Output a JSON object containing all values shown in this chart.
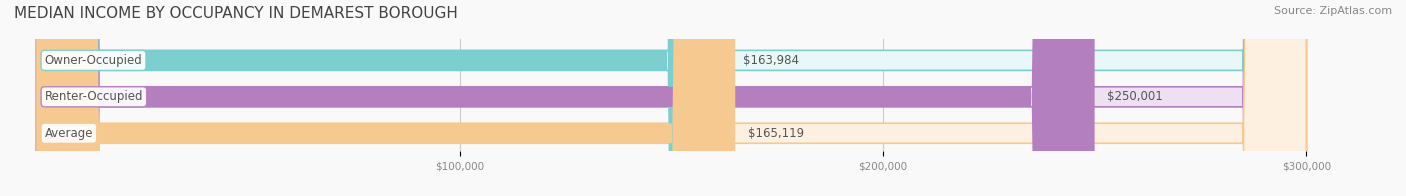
{
  "title": "MEDIAN INCOME BY OCCUPANCY IN DEMAREST BOROUGH",
  "source": "Source: ZipAtlas.com",
  "categories": [
    "Owner-Occupied",
    "Renter-Occupied",
    "Average"
  ],
  "values": [
    163984,
    250001,
    165119
  ],
  "bar_colors": [
    "#7dcfcf",
    "#b47fbe",
    "#f5c990"
  ],
  "bar_bg_colors": [
    "#e8f7f7",
    "#ede0f2",
    "#fdf0e0"
  ],
  "label_colors": [
    "#7dcfcf",
    "#b47fbe",
    "#f5c990"
  ],
  "value_labels": [
    "$163,984",
    "$250,001",
    "$165,119"
  ],
  "xlim": [
    0,
    300000
  ],
  "xticks": [
    100000,
    200000,
    300000
  ],
  "xtick_labels": [
    "$100,000",
    "$200,000",
    "$300,000"
  ],
  "bg_color": "#f9f9f9",
  "title_fontsize": 11,
  "source_fontsize": 8,
  "bar_label_fontsize": 8.5,
  "value_fontsize": 8.5
}
